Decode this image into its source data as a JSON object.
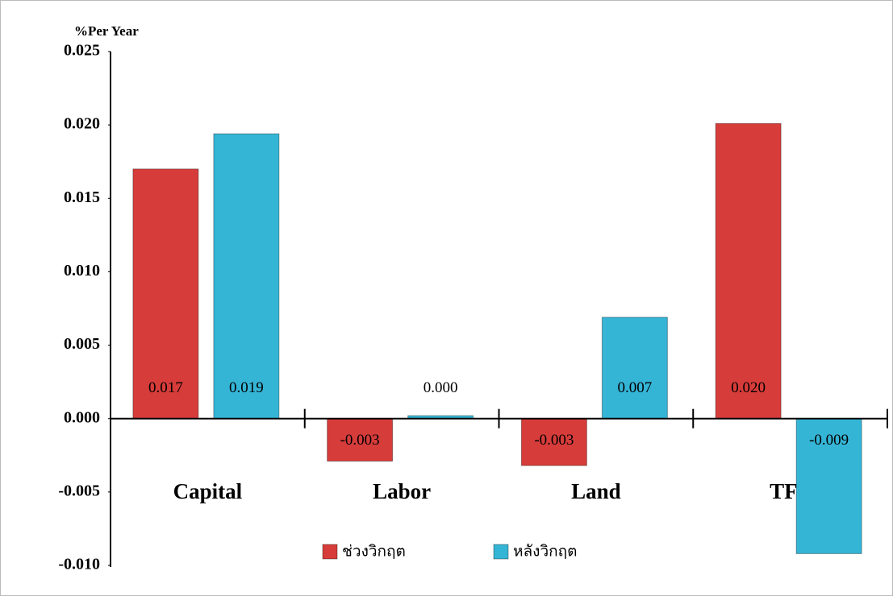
{
  "chart_data": {
    "type": "bar",
    "y_axis_label": "%Per Year",
    "categories": [
      "Capital",
      "Labor",
      "Land",
      "TFP"
    ],
    "series": [
      {
        "name": "ช่วงวิกฤต",
        "color": "#d63c3a",
        "values": [
          0.017,
          -0.0029,
          -0.0032,
          0.0201
        ],
        "value_labels": [
          "0.017",
          "-0.003",
          "-0.003",
          "0.020"
        ]
      },
      {
        "name": "หลังวิกฤต",
        "color": "#35b5d6",
        "values": [
          0.0194,
          0.0002,
          0.0069,
          -0.0092
        ],
        "value_labels": [
          "0.019",
          "0.000",
          "0.007",
          "-0.009"
        ]
      }
    ],
    "ylim": [
      -0.01,
      0.025
    ],
    "yticks": [
      {
        "value": -0.01,
        "label": "-0.010"
      },
      {
        "value": -0.005,
        "label": "-0.005"
      },
      {
        "value": 0,
        "label": "0.000"
      },
      {
        "value": 0.005,
        "label": "0.005"
      },
      {
        "value": 0.01,
        "label": "0.010"
      },
      {
        "value": 0.015,
        "label": "0.015"
      },
      {
        "value": 0.02,
        "label": "0.020"
      },
      {
        "value": 0.025,
        "label": "0.025"
      }
    ],
    "grid": false,
    "legend": "bottom"
  }
}
